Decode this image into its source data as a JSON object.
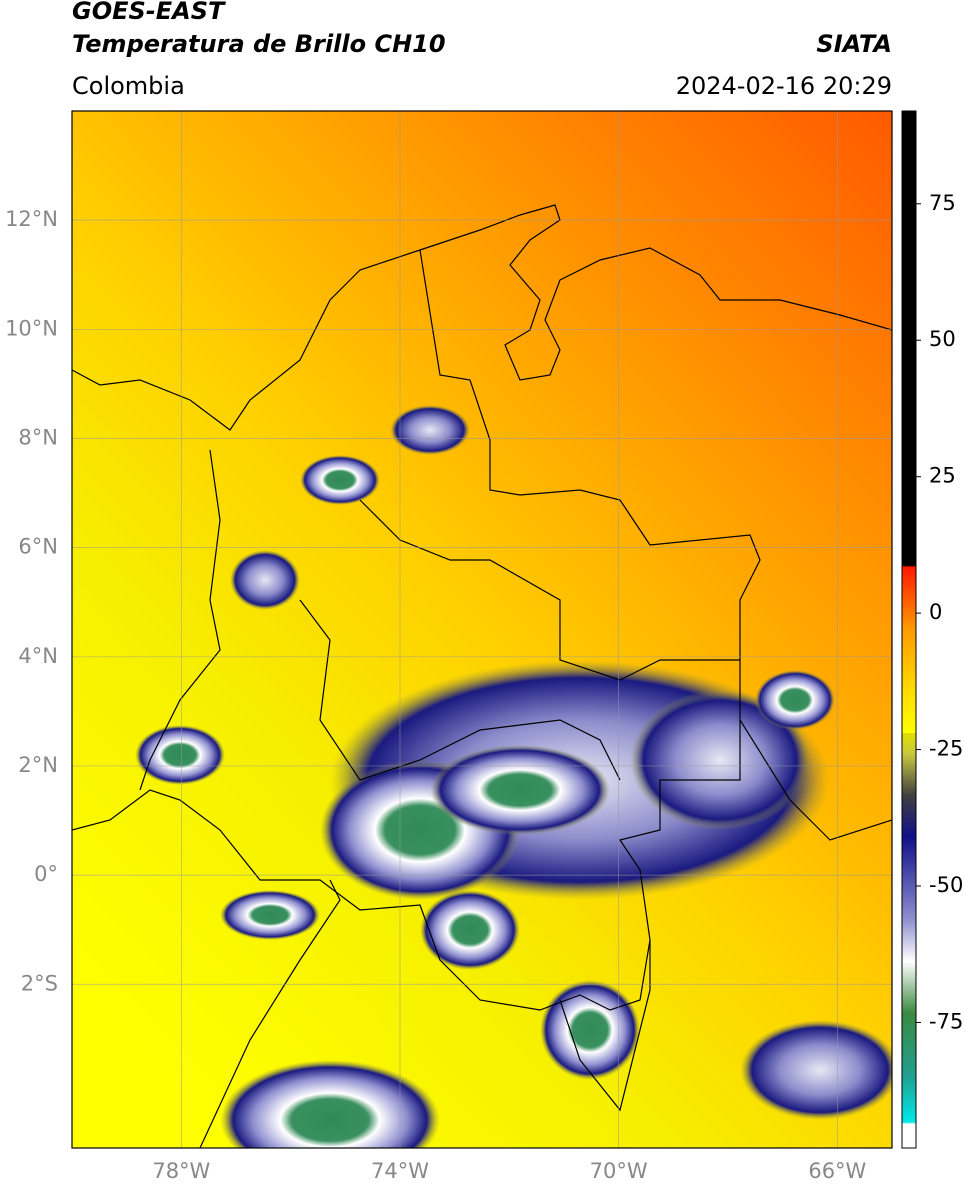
{
  "header": {
    "title": "GOES-EAST",
    "subtitle": "Temperatura de Brillo CH10",
    "region": "Colombia",
    "source": "SIATA",
    "timestamp": "2024-02-16 20:29"
  },
  "map": {
    "lonlim": [
      -80,
      -65
    ],
    "latlim": [
      -5,
      14
    ],
    "lon_ticks": [
      {
        "value": -78,
        "label": "78°W"
      },
      {
        "value": -74,
        "label": "74°W"
      },
      {
        "value": -70,
        "label": "70°W"
      },
      {
        "value": -66,
        "label": "66°W"
      }
    ],
    "lat_ticks": [
      {
        "value": 12,
        "label": "12°N"
      },
      {
        "value": 10,
        "label": "10°N"
      },
      {
        "value": 8,
        "label": "8°N"
      },
      {
        "value": 6,
        "label": "6°N"
      },
      {
        "value": 4,
        "label": "4°N"
      },
      {
        "value": 2,
        "label": "2°N"
      },
      {
        "value": 0,
        "label": "0°"
      },
      {
        "value": -2,
        "label": "2°S"
      }
    ]
  },
  "colorbar": {
    "lim": [
      -98,
      92
    ],
    "ticks": [
      75,
      50,
      25,
      0,
      -25,
      -50,
      -75
    ]
  }
}
